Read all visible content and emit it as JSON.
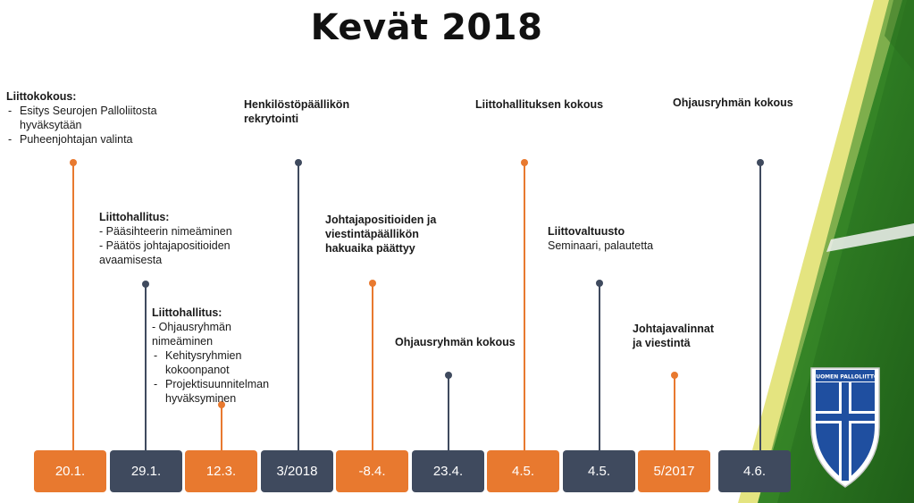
{
  "title": "Kevät 2018",
  "colors": {
    "orange": "#e8792f",
    "navy": "#3f4a5e",
    "grass": "#2f7d24"
  },
  "dates": [
    "20.1.",
    "29.1.",
    "12.3.",
    "3/2018",
    "-8.4.",
    "23.4.",
    "4.5.",
    "4.5.",
    "5/2017",
    "4.6."
  ],
  "events": {
    "e1": {
      "head": "Liittokokous:",
      "items": [
        "Esitys Seurojen Palloliitosta hyväksytään",
        "Puheenjohtajan valinta"
      ]
    },
    "e2": {
      "head": "Liittohallitus:",
      "lines": [
        "- Pääsihteerin nimeäminen",
        "- Päätös johtajapositioiden avaamisesta"
      ]
    },
    "e3": {
      "head": "Liittohallitus:",
      "line": "- Ohjausryhmän nimeäminen",
      "items": [
        "Kehitysryhmien kokoonpanot",
        "Projektisuunnitelman hyväksyminen"
      ]
    },
    "e4": {
      "text": "Henkilöstöpäällikön rekrytointi"
    },
    "e5": {
      "text": "Johtajapositioiden ja viestintäpäällikön hakuaika päättyy"
    },
    "e6": {
      "text": "Ohjausryhmän kokous"
    },
    "e7": {
      "text": "Liittohallituksen kokous"
    },
    "e8": {
      "head": "Liittovaltuusto",
      "line": "Seminaari, palautetta"
    },
    "e9": {
      "text": "Johtajavalinnat ja viestintä"
    },
    "e10": {
      "text": "Ohjausryhmän kokous"
    }
  },
  "logo": {
    "text": "SUOMEN PALLOLIITTO"
  }
}
